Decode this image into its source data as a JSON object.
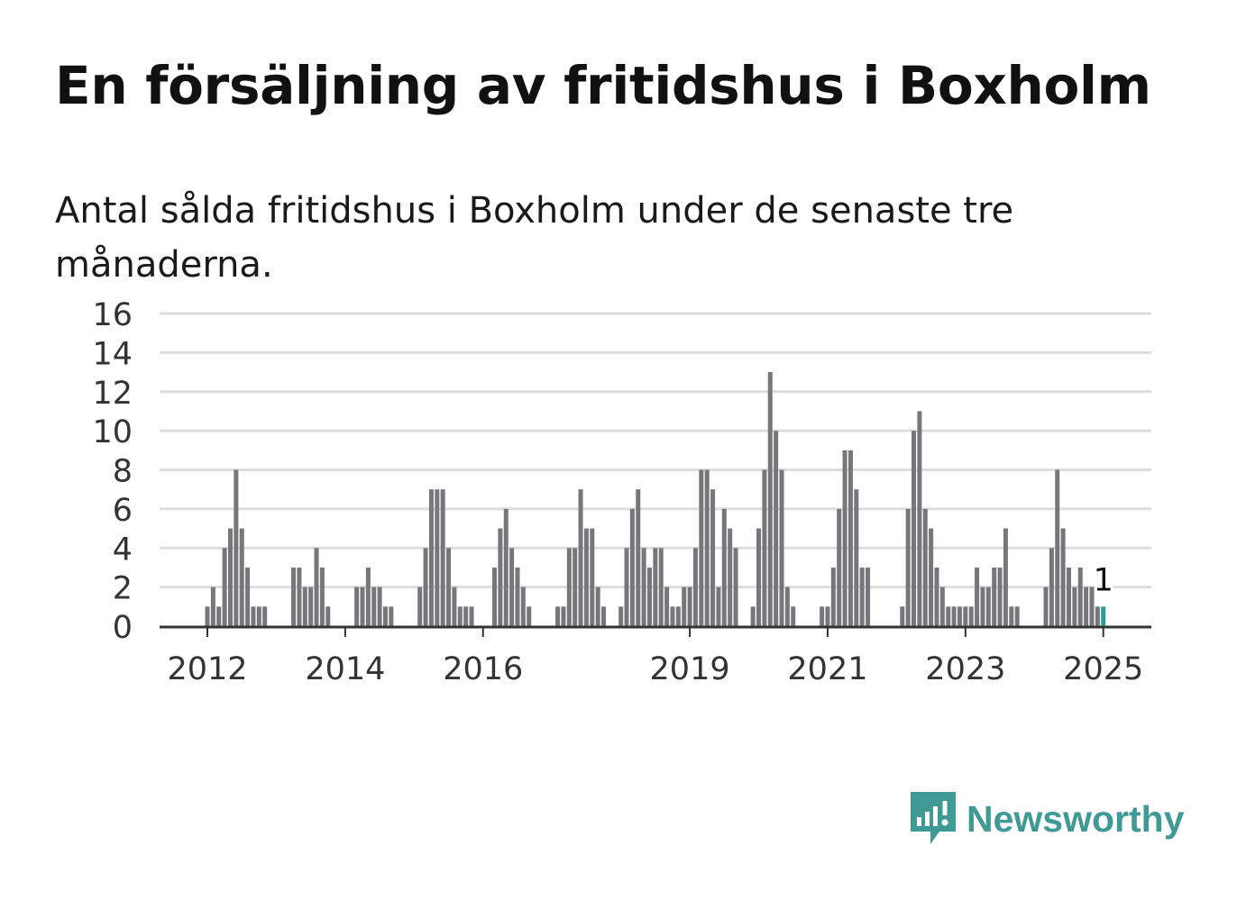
{
  "title": "En försäljning av fritidshus i Boxholm",
  "subtitle": "Antal sålda fritidshus i Boxholm under de senaste tre månaderna.",
  "brand": {
    "name": "Newsworthy",
    "color": "#3f9a95"
  },
  "colors": {
    "bar": "#77777b",
    "highlight": "#2a9d99",
    "grid": "#dddddd",
    "axis": "#333333",
    "text": "#333333"
  },
  "chart_data": {
    "type": "bar",
    "title": "",
    "xlabel": "",
    "ylabel": "",
    "ylim": [
      0,
      16
    ],
    "yticks": [
      "0",
      "2",
      "4",
      "6",
      "8",
      "10",
      "12",
      "14",
      "16"
    ],
    "xticks": [
      {
        "label": "2012",
        "index": 0
      },
      {
        "label": "2014",
        "index": 24
      },
      {
        "label": "2016",
        "index": 48
      },
      {
        "label": "2019",
        "index": 84
      },
      {
        "label": "2021",
        "index": 108
      },
      {
        "label": "2023",
        "index": 132
      },
      {
        "label": "2025",
        "index": 156
      }
    ],
    "start": "2011-12",
    "period": "month",
    "values": [
      0,
      1,
      2,
      1,
      4,
      5,
      8,
      5,
      3,
      1,
      1,
      1,
      0,
      0,
      0,
      0,
      3,
      3,
      2,
      2,
      4,
      3,
      1,
      0,
      0,
      0,
      0,
      2,
      2,
      3,
      2,
      2,
      1,
      1,
      0,
      0,
      0,
      0,
      2,
      4,
      7,
      7,
      7,
      4,
      2,
      1,
      1,
      1,
      0,
      0,
      0,
      3,
      5,
      6,
      4,
      3,
      2,
      1,
      0,
      0,
      0,
      0,
      1,
      1,
      4,
      4,
      7,
      5,
      5,
      2,
      1,
      0,
      0,
      1,
      4,
      6,
      7,
      4,
      3,
      4,
      4,
      2,
      1,
      1,
      2,
      2,
      4,
      8,
      8,
      7,
      2,
      6,
      5,
      4,
      0,
      0,
      1,
      5,
      8,
      13,
      10,
      8,
      2,
      1,
      0,
      0,
      0,
      0,
      1,
      1,
      3,
      6,
      9,
      9,
      7,
      3,
      3,
      0,
      0,
      0,
      0,
      0,
      1,
      6,
      10,
      11,
      6,
      5,
      3,
      2,
      1,
      1,
      1,
      1,
      1,
      3,
      2,
      2,
      3,
      3,
      5,
      1,
      1,
      0,
      0,
      0,
      0,
      2,
      4,
      8,
      5,
      3,
      2,
      3,
      2,
      2,
      1
    ],
    "highlight_index": 157,
    "annotation": {
      "label": "1",
      "index": 157
    }
  }
}
